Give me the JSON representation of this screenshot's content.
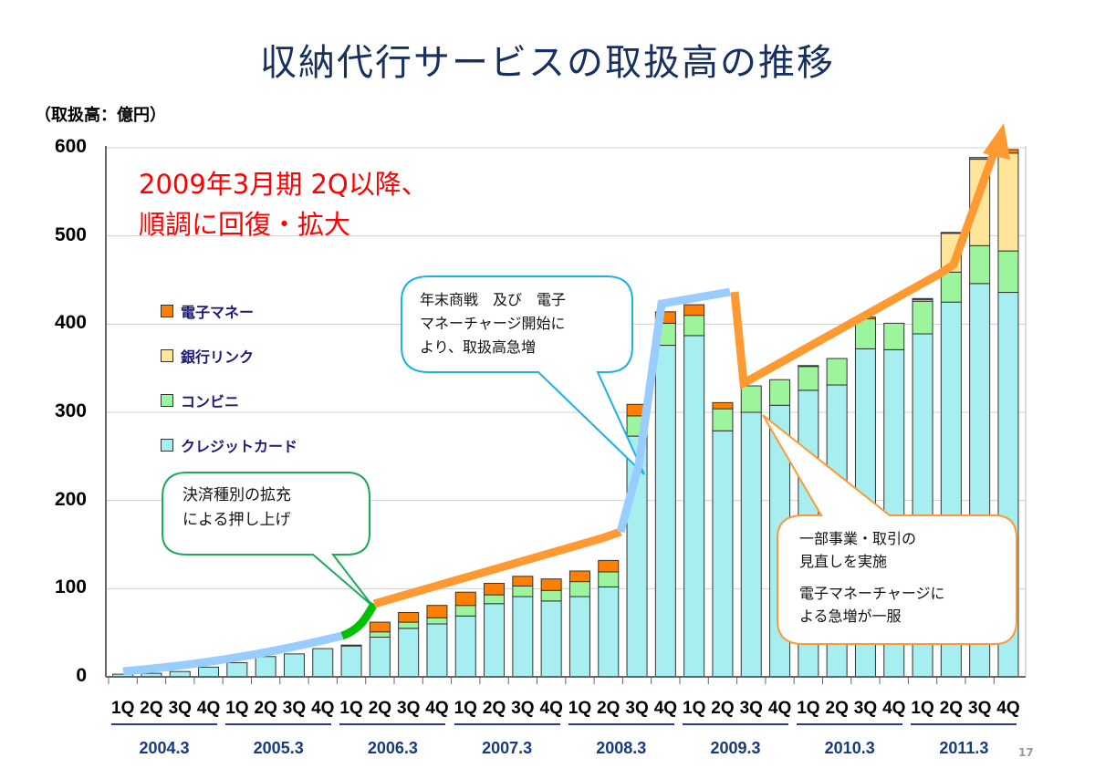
{
  "title": "収納代行サービスの取扱高の推移",
  "headline": [
    "2009年3月期 2Q以降、",
    "順調に回復・拡大"
  ],
  "callouts": {
    "settlement": [
      "決済種別の拡充",
      "による押し上げ"
    ],
    "year_end": [
      "年末商戦　及び　電子",
      "マネーチャージ開始に",
      "より、取扱高急増"
    ],
    "review": [
      "一部事業・取引の",
      "見直しを実施",
      "電子マネーチャージに",
      "よる急増が一服"
    ]
  },
  "page_number": "17",
  "colors": {
    "credit": "#a6eef0",
    "convenience": "#9cf59c",
    "bank": "#ffe599",
    "emoney": "#ff8000",
    "trend_orange": "#ff9a33",
    "trend_blue": "#99ccff",
    "trend_green": "#00c000",
    "title": "#17305f"
  },
  "chart_data": {
    "type": "bar",
    "stacked": true,
    "title": "収納代行サービスの取扱高の推移",
    "ylabel": "（取扱高：億円）",
    "ylim": [
      0,
      600
    ],
    "yticks": [
      "0",
      "100",
      "200",
      "300",
      "400",
      "500",
      "600"
    ],
    "quarter_labels": [
      "1Q",
      "2Q",
      "3Q",
      "4Q"
    ],
    "years": [
      "2004.3",
      "2005.3",
      "2006.3",
      "2007.3",
      "2008.3",
      "2009.3",
      "2010.3",
      "2011.3"
    ],
    "grid": true,
    "legend_placement": "top-left",
    "series": [
      {
        "name": "クレジットカード",
        "color": "#a6eef0",
        "values": [
          3,
          4,
          6,
          11,
          16,
          23,
          26,
          32,
          35,
          45,
          55,
          60,
          69,
          83,
          91,
          86,
          91,
          102,
          273,
          376,
          387,
          279,
          300,
          308,
          325,
          331,
          372,
          371,
          389,
          425,
          446,
          436
        ]
      },
      {
        "name": "コンビニ",
        "color": "#9cf59c",
        "values": [
          0,
          0,
          0,
          0,
          0,
          0,
          0,
          0,
          0,
          6,
          7,
          7,
          12,
          10,
          12,
          12,
          17,
          17,
          23,
          25,
          23,
          25,
          30,
          29,
          27,
          30,
          34,
          30,
          37,
          34,
          43,
          47
        ]
      },
      {
        "name": "銀行リンク",
        "color": "#ffe599",
        "values": [
          0,
          0,
          0,
          0,
          0,
          0,
          0,
          0,
          0,
          0,
          0,
          0,
          0,
          0,
          0,
          0,
          0,
          0,
          0,
          0,
          0,
          0,
          0,
          0,
          0,
          0,
          0,
          0,
          2,
          44,
          98,
          111
        ]
      },
      {
        "name": "電子マネー",
        "color": "#ff8000",
        "values": [
          0,
          0,
          0,
          0,
          0,
          0,
          0,
          0,
          1,
          11,
          11,
          14,
          15,
          13,
          11,
          13,
          12,
          13,
          13,
          13,
          12,
          7,
          0,
          0,
          1,
          0,
          2,
          0,
          1,
          1,
          2,
          4
        ]
      }
    ],
    "legend_order": [
      "電子マネー",
      "銀行リンク",
      "コンビニ",
      "クレジットカード"
    ]
  }
}
